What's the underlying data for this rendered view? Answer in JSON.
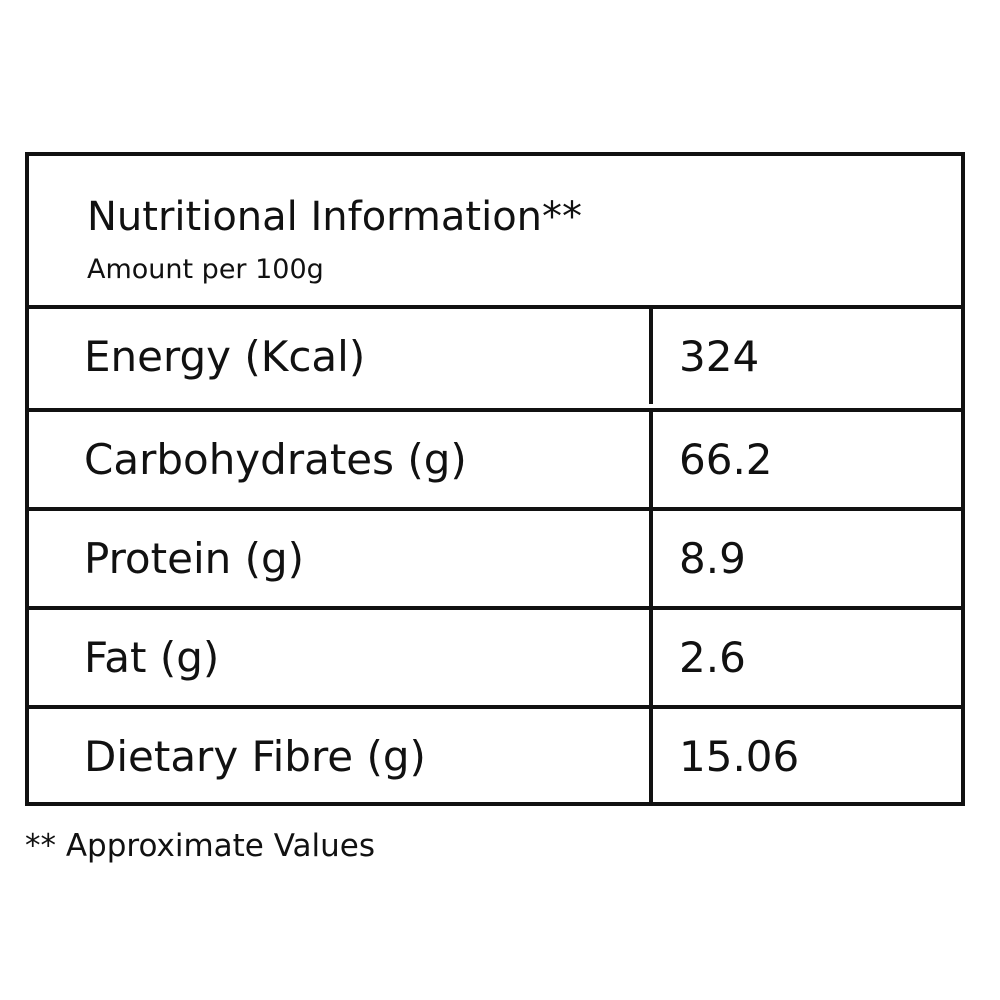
{
  "header": {
    "title": "Nutritional Information**",
    "subtitle": "Amount per 100g"
  },
  "table": {
    "rows": [
      [
        "Energy (Kcal)",
        "324"
      ],
      [
        "Carbohydrates (g)",
        "66.2"
      ],
      [
        "Protein (g)",
        "8.9"
      ],
      [
        "Fat (g)",
        "2.6"
      ],
      [
        "Dietary Fibre (g)",
        "15.06"
      ]
    ]
  },
  "footnote": "** Approximate Values"
}
